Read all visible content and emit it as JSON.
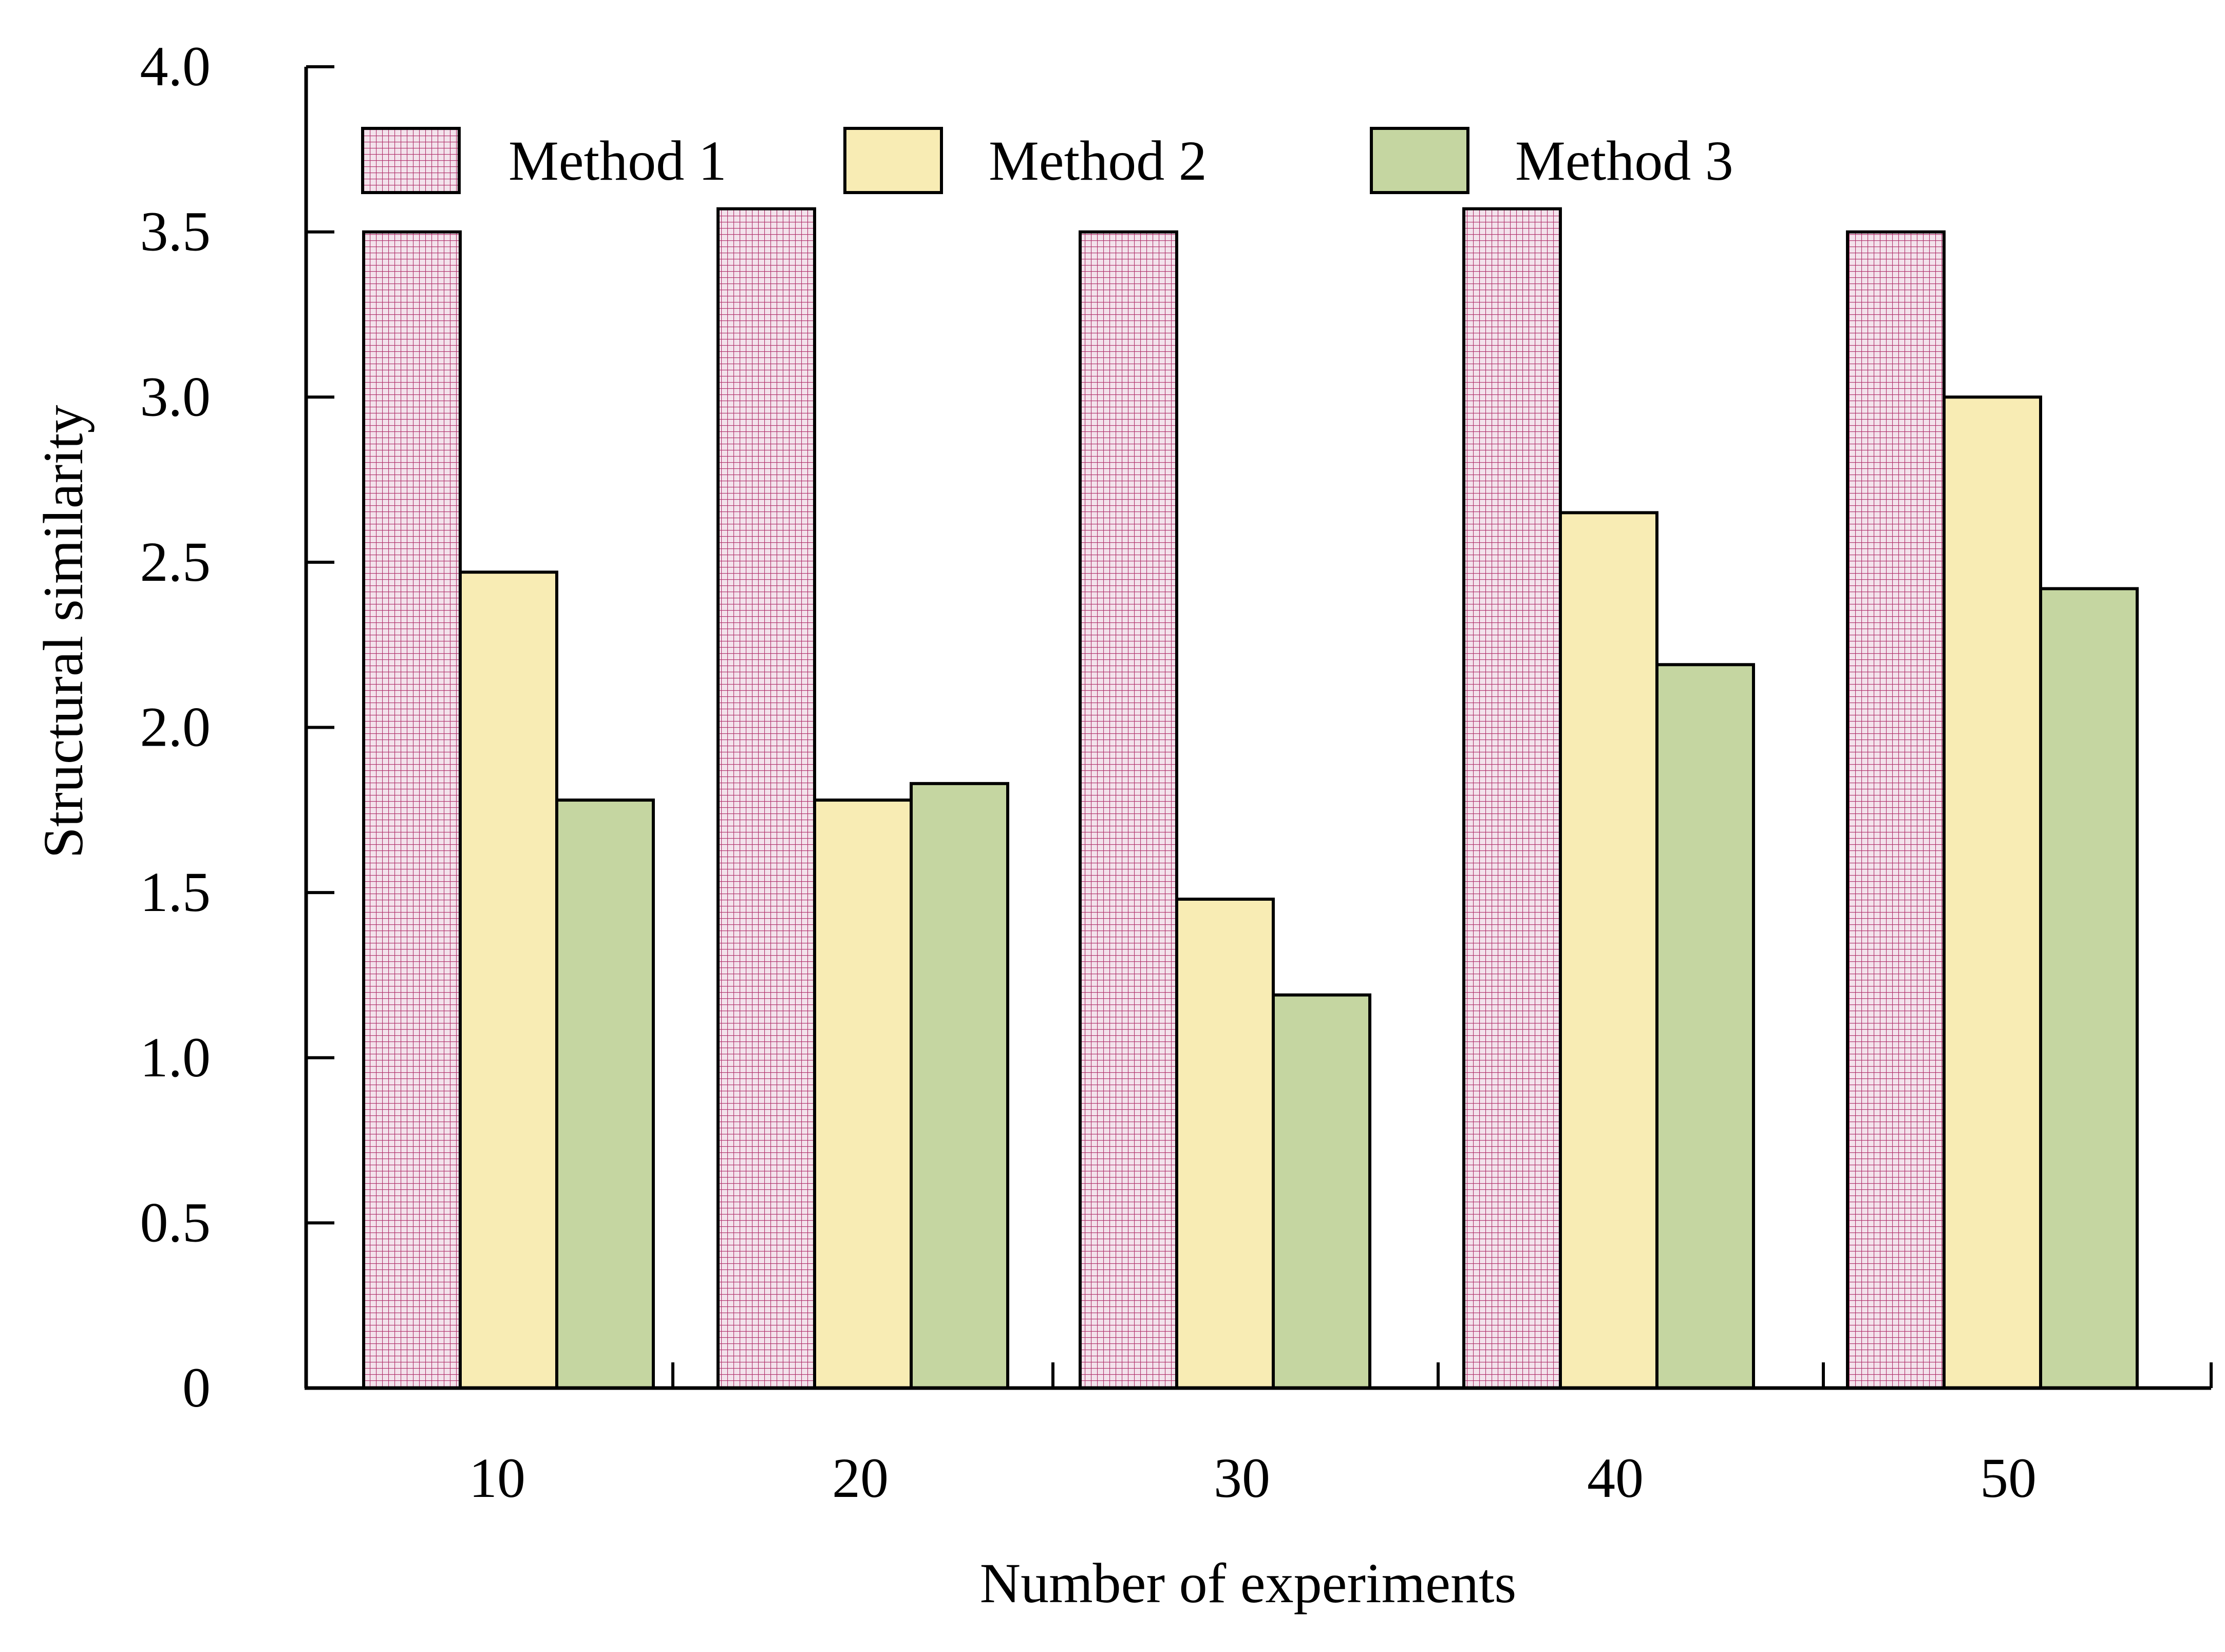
{
  "chart_data": {
    "type": "bar",
    "title": "",
    "xlabel": "Number of experiments",
    "ylabel": "Structural similarity",
    "categories": [
      "10",
      "20",
      "30",
      "40",
      "50"
    ],
    "series": [
      {
        "name": "Method 1",
        "values": [
          3.5,
          3.57,
          3.5,
          3.57,
          3.5
        ],
        "color": "#f3e3ec",
        "pattern": "grid-magenta"
      },
      {
        "name": "Method 2",
        "values": [
          2.47,
          1.78,
          1.48,
          2.65,
          3.0
        ],
        "color": "#f8ecb4"
      },
      {
        "name": "Method 3",
        "values": [
          1.78,
          1.83,
          1.19,
          2.19,
          2.42
        ],
        "color": "#c5d6a1"
      }
    ],
    "ylim": [
      0,
      4.0
    ],
    "yticks": [
      "0",
      "0.5",
      "1.0",
      "1.5",
      "2.0",
      "2.5",
      "3.0",
      "3.5",
      "4.0"
    ],
    "grid": false,
    "legend_position": "top",
    "colors": {
      "axis": "#000000",
      "bar_outline": "#000000",
      "pattern_lines": "#b0306a"
    }
  }
}
